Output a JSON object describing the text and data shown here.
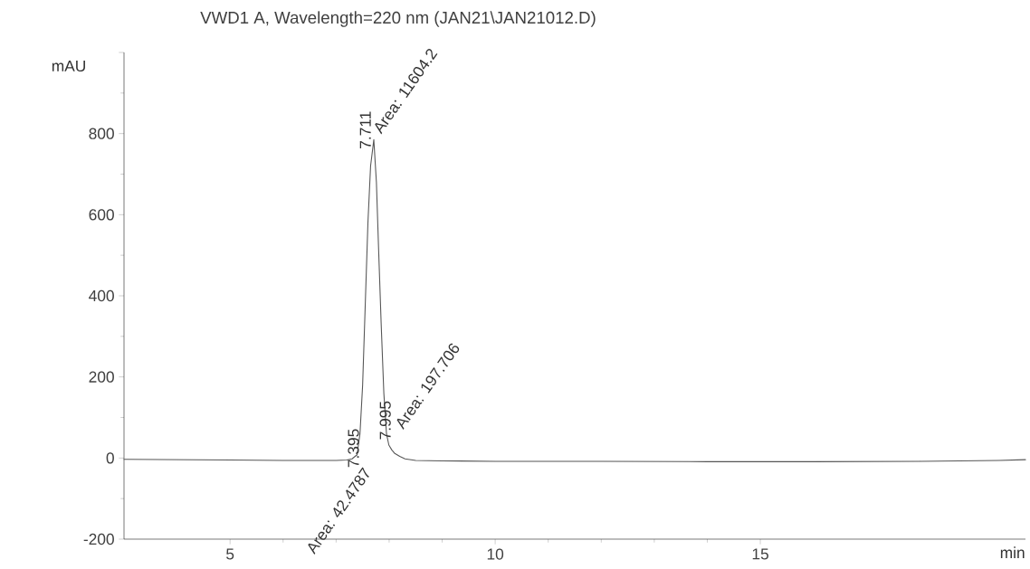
{
  "chart_data": {
    "type": "line",
    "title": "VWD1 A, Wavelength=220 nm (JAN21\\JAN21012.D)",
    "xlabel": "min",
    "ylabel": "mAU",
    "color": "#555555",
    "x": [
      3,
      4,
      5,
      6,
      7,
      7.2,
      7.3,
      7.395,
      7.45,
      7.5,
      7.55,
      7.6,
      7.65,
      7.711,
      7.76,
      7.8,
      7.85,
      7.9,
      7.95,
      7.995,
      8.05,
      8.1,
      8.2,
      8.3,
      8.5,
      9,
      10,
      12,
      14,
      16,
      18,
      19.5,
      20
    ],
    "values": [
      -3,
      -4,
      -5,
      -6,
      -6,
      -5,
      -2,
      8,
      60,
      180,
      380,
      580,
      720,
      785,
      680,
      520,
      330,
      160,
      60,
      32,
      20,
      12,
      4,
      -2,
      -6,
      -7,
      -8,
      -8,
      -9,
      -9,
      -8,
      -6,
      -4
    ],
    "xlim": [
      3,
      20
    ],
    "xticks": [
      5,
      10,
      15
    ],
    "ylim": [
      -200,
      1000
    ],
    "yticks": [
      -200,
      0,
      200,
      400,
      600,
      800,
      {
        "value": 1000,
        "label": null
      }
    ],
    "marker": "none",
    "line_style": "solid",
    "grid": false,
    "annotations": [
      {
        "text": "7.711",
        "x": 7.711,
        "y": 785
      },
      {
        "text": "Area: 11604.2",
        "x": 7.711,
        "y": 785
      },
      {
        "text": "7.395",
        "x": 7.395,
        "y": 8
      },
      {
        "text": "Area: 42.4787",
        "x": 7.395,
        "y": 8
      },
      {
        "text": "7.995",
        "x": 7.995,
        "y": 32
      },
      {
        "text": "Area: 197.706",
        "x": 7.995,
        "y": 32
      }
    ]
  }
}
